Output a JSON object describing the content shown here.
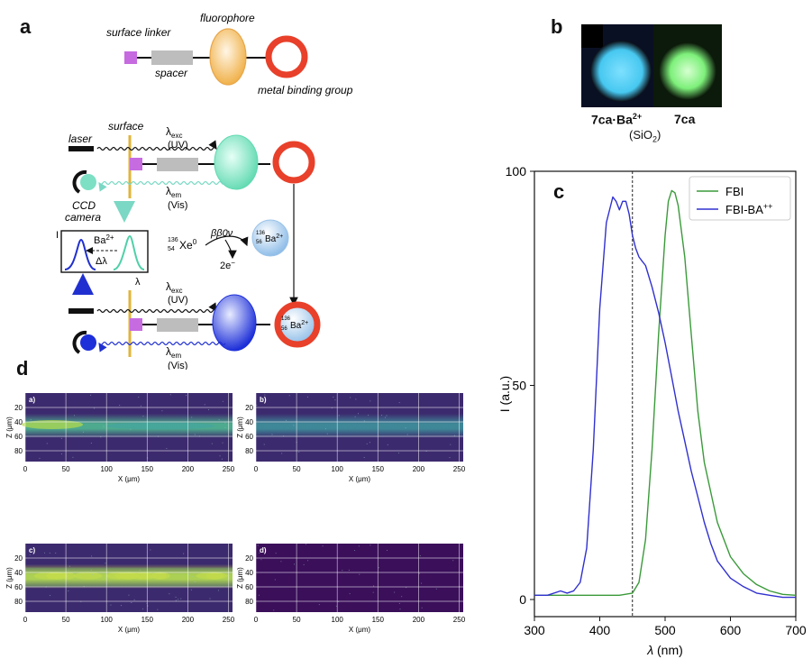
{
  "panels": {
    "a": "a",
    "b": "b",
    "c": "c",
    "d": "d"
  },
  "molecule": {
    "surface_linker": "surface linker",
    "spacer": "spacer",
    "fluorophore": "fluorophore",
    "metal_binding_group": "metal binding group"
  },
  "schematic": {
    "laser": "laser",
    "surface": "surface",
    "lambda_exc": "λ",
    "exc_sub": "exc",
    "uv": "(UV)",
    "lambda_em": "λ",
    "em_sub": "em",
    "vis": "(Vis)",
    "ccd": "CCD",
    "camera": "camera",
    "inset_I": "I",
    "inset_ba": "Ba",
    "inset_ba_sup": "2+",
    "inset_dl": "Δλ",
    "inset_lambda": "λ",
    "xe_mass": "136",
    "xe_z": "54",
    "xe": "Xe",
    "xe_sup": "0",
    "decay": "ββ0ν",
    "electrons": "2e",
    "electrons_sup": "−",
    "ba_mass": "136",
    "ba_z": "56",
    "ba": "Ba",
    "ba_sup": "2+"
  },
  "photo": {
    "label_left": "7ca·Ba",
    "label_left_sup": "2+",
    "label_right": "7ca",
    "sio2": "(SiO",
    "sio2_sub": "2",
    "sio2_end": ")",
    "colors": {
      "left_glow": "#47c8f0",
      "right_glow": "#7df07a"
    }
  },
  "chart_data": {
    "type": "line",
    "xlabel_symbol": "λ",
    "xlabel_unit": " (nm)",
    "ylabel": "I (a.u.)",
    "xlim": [
      300,
      700
    ],
    "ylim": [
      -4,
      100
    ],
    "xticks": [
      300,
      400,
      500,
      600,
      700
    ],
    "yticks": [
      0,
      50,
      100
    ],
    "vline_x": 450,
    "legend_position": "top-right",
    "series": [
      {
        "name": "FBI",
        "color": "#3a9a3a",
        "x": [
          300,
          350,
          400,
          430,
          450,
          460,
          470,
          480,
          490,
          500,
          505,
          510,
          515,
          520,
          530,
          540,
          550,
          560,
          580,
          600,
          620,
          640,
          660,
          680,
          700
        ],
        "y": [
          1,
          1,
          1,
          1,
          1.5,
          4,
          14,
          35,
          62,
          85,
          93,
          95.5,
          95,
          92,
          80,
          62,
          44,
          32,
          18,
          10,
          6,
          3.5,
          2,
          1.2,
          1
        ]
      },
      {
        "name": "FBI-BA",
        "name_sup": "++",
        "color": "#3030d0",
        "x": [
          300,
          320,
          340,
          350,
          360,
          370,
          380,
          390,
          400,
          410,
          420,
          425,
          430,
          435,
          440,
          445,
          450,
          455,
          460,
          465,
          470,
          480,
          490,
          500,
          510,
          520,
          530,
          540,
          550,
          560,
          570,
          580,
          600,
          620,
          640,
          660,
          680,
          700
        ],
        "y": [
          1,
          1,
          2,
          1.5,
          2,
          4,
          12,
          35,
          68,
          88,
          94,
          93,
          91,
          93,
          93,
          90,
          85,
          82,
          80,
          79,
          78,
          73,
          67,
          60,
          52,
          44,
          37,
          30,
          24,
          18,
          13,
          9,
          5,
          3,
          1.5,
          1,
          0.5,
          0.5
        ]
      }
    ]
  },
  "heatmaps": [
    {
      "label": "a)",
      "xlabel_unit": "X (μm)",
      "ylabel": "Z (μm)",
      "xticks": [
        0,
        50,
        100,
        150,
        200,
        250
      ],
      "yticks": [
        20,
        40,
        60,
        80
      ],
      "band": "strong-left"
    },
    {
      "label": "b)",
      "xlabel_unit": "X (μm)",
      "ylabel": "Z (μm)",
      "xticks": [
        0,
        50,
        100,
        150,
        200,
        250
      ],
      "yticks": [
        20,
        40,
        60,
        80
      ],
      "band": "faint"
    },
    {
      "label": "c)",
      "xlabel_unit": "X (μm)",
      "ylabel": "Z (μm)",
      "xticks": [
        0,
        50,
        100,
        150,
        200,
        250
      ],
      "yticks": [
        20,
        40,
        60,
        80
      ],
      "band": "bright"
    },
    {
      "label": "d)",
      "xlabel_unit": "X (μm)",
      "ylabel": "Z (μm)",
      "xticks": [
        0,
        50,
        100,
        150,
        200,
        250
      ],
      "yticks": [
        20,
        40,
        60,
        80
      ],
      "band": "none"
    }
  ]
}
